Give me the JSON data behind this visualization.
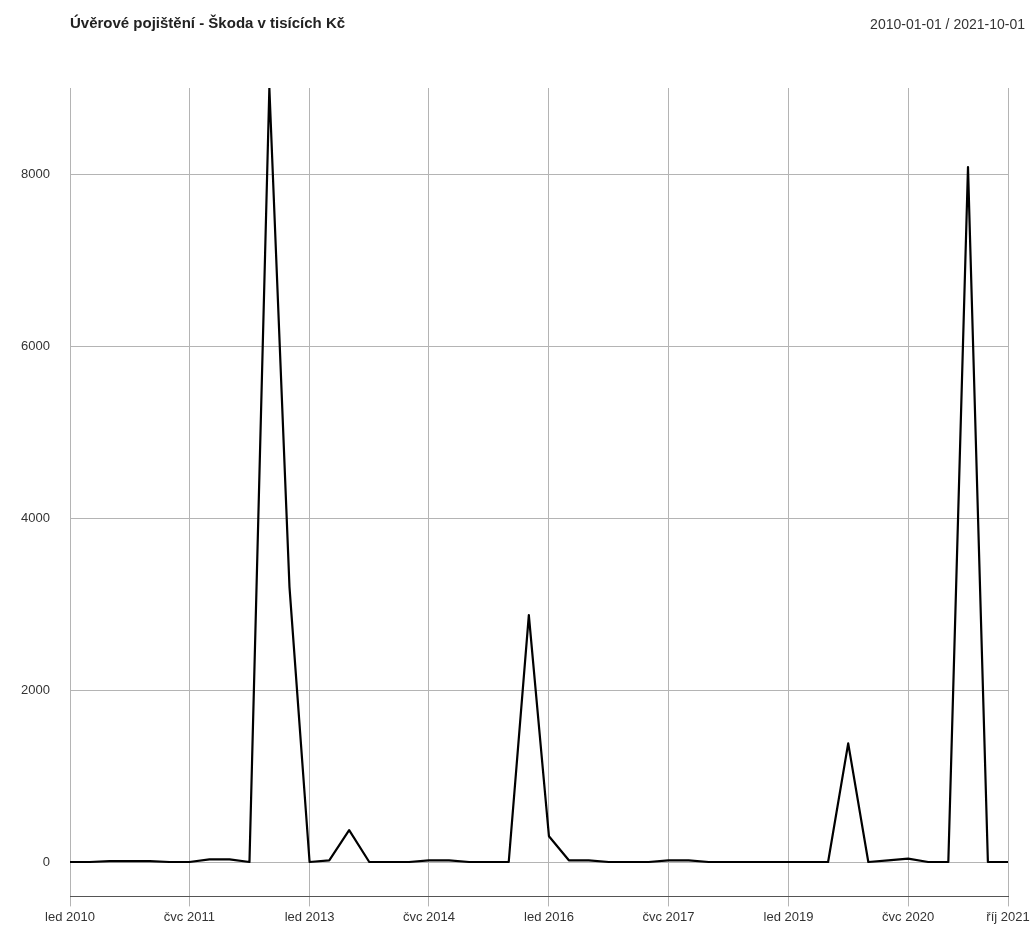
{
  "chart_data": {
    "type": "line",
    "title": "Úvěrové pojištění - Škoda v tisících Kč",
    "subtitle": "2010-01-01 / 2021-10-01",
    "x": [
      "2010-01",
      "2010-04",
      "2010-07",
      "2010-10",
      "2011-01",
      "2011-04",
      "2011-07",
      "2011-10",
      "2012-01",
      "2012-04",
      "2012-07",
      "2012-10",
      "2013-01",
      "2013-04",
      "2013-07",
      "2013-10",
      "2014-01",
      "2014-04",
      "2014-07",
      "2014-10",
      "2015-01",
      "2015-04",
      "2015-07",
      "2015-10",
      "2016-01",
      "2016-04",
      "2016-07",
      "2016-10",
      "2017-01",
      "2017-04",
      "2017-07",
      "2017-10",
      "2018-01",
      "2018-04",
      "2018-07",
      "2018-10",
      "2019-01",
      "2019-04",
      "2019-07",
      "2019-10",
      "2020-01",
      "2020-04",
      "2020-07",
      "2020-10",
      "2021-01",
      "2021-04",
      "2021-07",
      "2021-10"
    ],
    "series": [
      {
        "color": "#000000",
        "values": [
          0,
          0,
          10,
          10,
          10,
          0,
          0,
          30,
          30,
          0,
          9000,
          3200,
          0,
          20,
          370,
          0,
          0,
          0,
          20,
          20,
          0,
          0,
          0,
          2870,
          300,
          20,
          20,
          0,
          0,
          0,
          20,
          20,
          0,
          0,
          0,
          0,
          0,
          0,
          0,
          1380,
          0,
          20,
          40,
          0,
          0,
          8080,
          0,
          0
        ]
      }
    ],
    "xlim": [
      "2010-01",
      "2021-10"
    ],
    "xticks": [
      {
        "value": "2010-01",
        "label": "led 2010"
      },
      {
        "value": "2011-07",
        "label": "čvc 2011"
      },
      {
        "value": "2013-01",
        "label": "led 2013"
      },
      {
        "value": "2014-07",
        "label": "čvc 2014"
      },
      {
        "value": "2016-01",
        "label": "led 2016"
      },
      {
        "value": "2017-07",
        "label": "čvc 2017"
      },
      {
        "value": "2019-01",
        "label": "led 2019"
      },
      {
        "value": "2020-07",
        "label": "čvc 2020"
      },
      {
        "value": "2021-10",
        "label": "říj 2021"
      }
    ],
    "ylim": [
      -400,
      9000
    ],
    "yticks": [
      0,
      2000,
      4000,
      6000,
      8000
    ],
    "grid": true,
    "legend": false,
    "marker": "none",
    "line_style": "solid"
  }
}
